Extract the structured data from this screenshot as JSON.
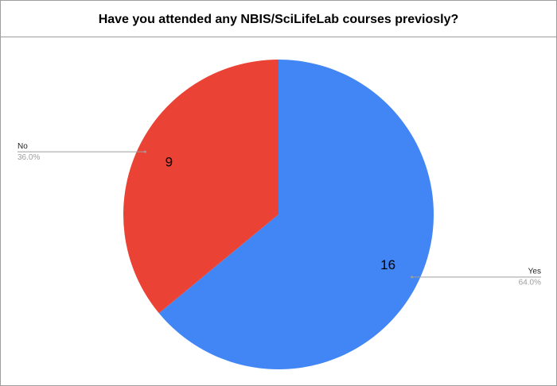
{
  "chart_data": {
    "type": "pie",
    "title": "Have you attended any NBIS/SciLifeLab courses previosly?",
    "categories": [
      "Yes",
      "No"
    ],
    "values": [
      16,
      9
    ],
    "percent_labels": [
      "64.0%",
      "36.0%"
    ],
    "colors": [
      "#4285f4",
      "#ea4335"
    ]
  }
}
